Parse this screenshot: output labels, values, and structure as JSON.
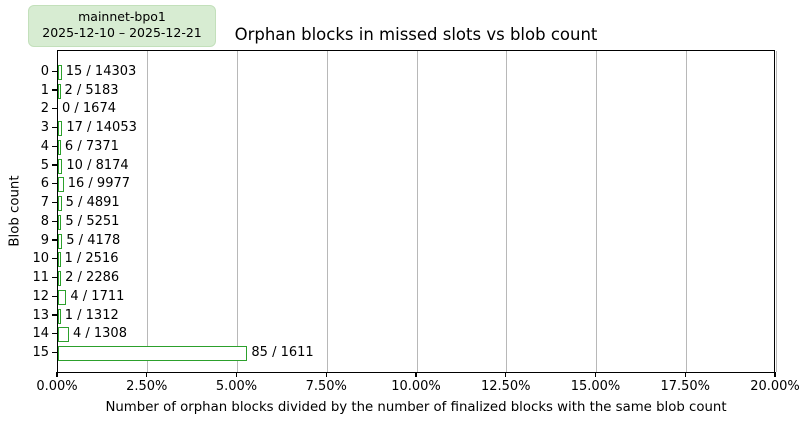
{
  "badge": {
    "line1": "mainnet-bpo1",
    "line2": "2025-12-10 – 2025-12-21"
  },
  "title": "Orphan blocks in missed slots vs blob count",
  "colors": {
    "bar_edge": "#2ca02c",
    "bar_fill": "#ffffff",
    "badge_bg": "#d7ecd2",
    "grid": "#b8b8b8",
    "axis": "#000000"
  },
  "chart_data": {
    "type": "bar",
    "orientation": "horizontal",
    "title": "Orphan blocks in missed slots vs blob count",
    "xlabel": "Number of orphan blocks divided by the number of finalized blocks with the same blob count",
    "ylabel": "Blob count",
    "xlim": [
      0,
      20
    ],
    "grid": "vertical",
    "x_ticks": [
      {
        "value": 0,
        "label": "0.00%"
      },
      {
        "value": 2.5,
        "label": "2.50%"
      },
      {
        "value": 5,
        "label": "5.00%"
      },
      {
        "value": 7.5,
        "label": "7.50%"
      },
      {
        "value": 10,
        "label": "10.00%"
      },
      {
        "value": 12.5,
        "label": "12.50%"
      },
      {
        "value": 15,
        "label": "15.00%"
      },
      {
        "value": 17.5,
        "label": "17.50%"
      },
      {
        "value": 20,
        "label": "20.00%"
      }
    ],
    "rows": [
      {
        "blob_count": "0",
        "orphans": 15,
        "finalized": 14303,
        "label": "15 / 14303",
        "pct": 0.1049
      },
      {
        "blob_count": "1",
        "orphans": 2,
        "finalized": 5183,
        "label": "2 / 5183",
        "pct": 0.0386
      },
      {
        "blob_count": "2",
        "orphans": 0,
        "finalized": 1674,
        "label": "0 / 1674",
        "pct": 0.0
      },
      {
        "blob_count": "3",
        "orphans": 17,
        "finalized": 14053,
        "label": "17 / 14053",
        "pct": 0.121
      },
      {
        "blob_count": "4",
        "orphans": 6,
        "finalized": 7371,
        "label": "6 / 7371",
        "pct": 0.0814
      },
      {
        "blob_count": "5",
        "orphans": 10,
        "finalized": 8174,
        "label": "10 / 8174",
        "pct": 0.1223
      },
      {
        "blob_count": "6",
        "orphans": 16,
        "finalized": 9977,
        "label": "16 / 9977",
        "pct": 0.1604
      },
      {
        "blob_count": "7",
        "orphans": 5,
        "finalized": 4891,
        "label": "5 / 4891",
        "pct": 0.1022
      },
      {
        "blob_count": "8",
        "orphans": 5,
        "finalized": 5251,
        "label": "5 / 5251",
        "pct": 0.0952
      },
      {
        "blob_count": "9",
        "orphans": 5,
        "finalized": 4178,
        "label": "5 / 4178",
        "pct": 0.1197
      },
      {
        "blob_count": "10",
        "orphans": 1,
        "finalized": 2516,
        "label": "1 / 2516",
        "pct": 0.0397
      },
      {
        "blob_count": "11",
        "orphans": 2,
        "finalized": 2286,
        "label": "2 / 2286",
        "pct": 0.0875
      },
      {
        "blob_count": "12",
        "orphans": 4,
        "finalized": 1711,
        "label": "4 / 1711",
        "pct": 0.2338
      },
      {
        "blob_count": "13",
        "orphans": 1,
        "finalized": 1312,
        "label": "1 / 1312",
        "pct": 0.0762
      },
      {
        "blob_count": "14",
        "orphans": 4,
        "finalized": 1308,
        "label": "4 / 1308",
        "pct": 0.3058
      },
      {
        "blob_count": "15",
        "orphans": 85,
        "finalized": 1611,
        "label": "85 / 1611",
        "pct": 5.2762
      }
    ]
  }
}
